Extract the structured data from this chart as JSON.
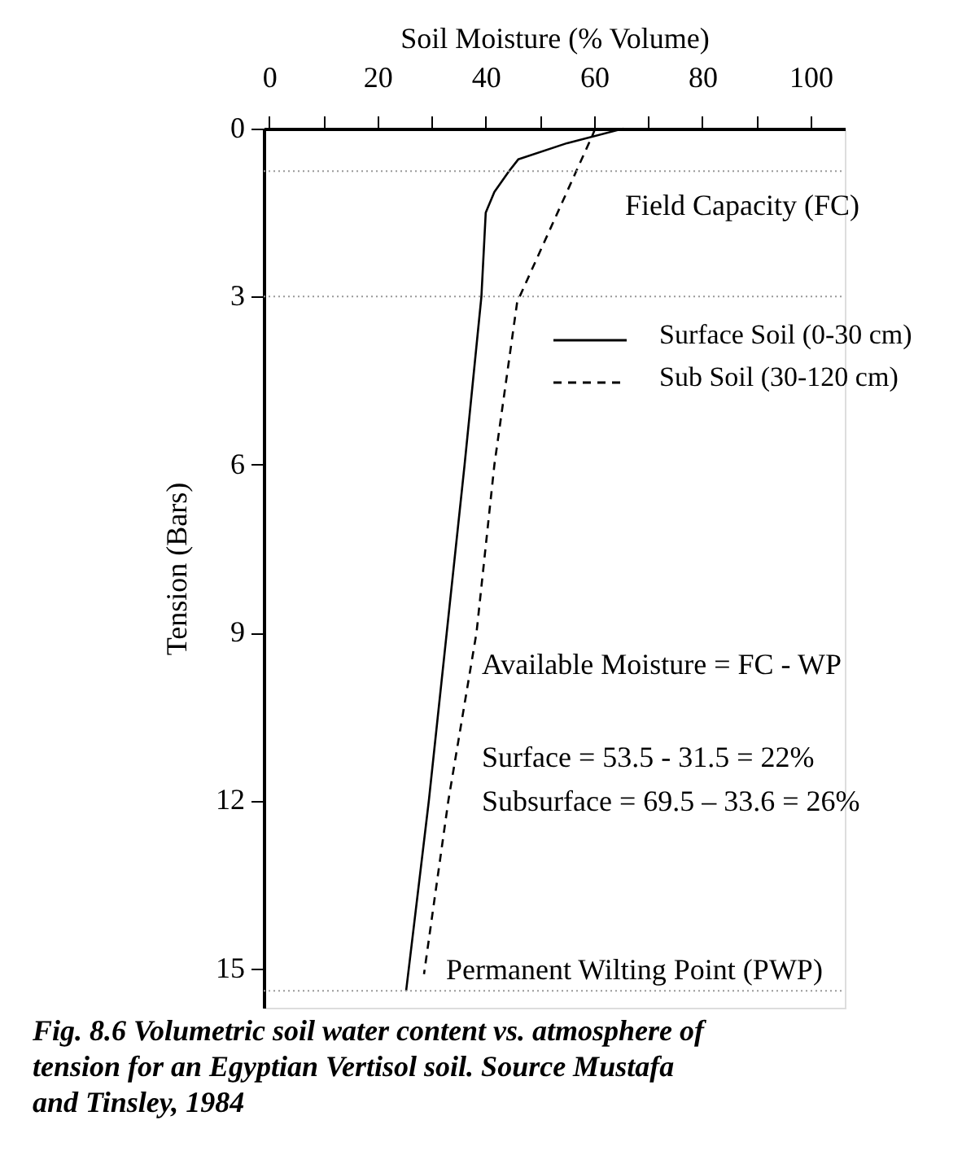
{
  "chart_data": {
    "type": "line",
    "xlabel": "Soil Moisture (% Volume)",
    "ylabel": "Tension (Bars)",
    "xlim": [
      -1,
      106.3
    ],
    "xticks": [
      0,
      {
        "value": 10,
        "label": null
      },
      20,
      {
        "value": 30,
        "label": null
      },
      40,
      {
        "value": 50,
        "label": null
      },
      60,
      {
        "value": 70,
        "label": null
      },
      80,
      {
        "value": 90,
        "label": null
      },
      100
    ],
    "ylim": [
      15.7,
      0
    ],
    "yticks": [
      0,
      3,
      6,
      9,
      12,
      15
    ],
    "series": [
      {
        "name": "Surface Soil (0-30 cm)",
        "color": "#000000",
        "line_style": "solid",
        "x": [
          65.4,
          55,
          46,
          44.3,
          41.6,
          40,
          39.2,
          36.1,
          32.8,
          29.5,
          25.3
        ],
        "values": [
          0,
          0.26,
          0.55,
          0.76,
          1.13,
          1.5,
          3,
          6,
          9,
          12,
          15.4
        ]
      },
      {
        "name": "Sub Soil (30-120 cm)",
        "color": "#000000",
        "line_style": "dashed",
        "x": [
          60.2,
          59.8,
          45.8,
          41.6,
          38.3,
          33.1,
          28.6
        ],
        "values": [
          0,
          0.1,
          3.1,
          6,
          9,
          12,
          15.1
        ]
      }
    ],
    "ref_lines": [
      {
        "axis": "y",
        "value": 0.76,
        "label": "Field Capacity (FC)",
        "color": "#999999",
        "line_style": "dotted"
      },
      {
        "axis": "y",
        "value": 3,
        "label": null,
        "color": "#999999",
        "line_style": "dotted"
      },
      {
        "axis": "y",
        "value": 15.4,
        "label": "Permanent Wilting Point (PWP)",
        "color": "#999999",
        "line_style": "dotted"
      }
    ],
    "annotations": [
      "Available Moisture = FC - WP",
      "Surface = 53.5 - 31.5 = 22%",
      "Subsurface = 69.5 – 33.6 = 26%",
      "Fig. 8.6 Volumetric soil water content vs. atmosphere of tension for an Egyptian Vertisol soil. Source Mustafa and Tinsley, 1984"
    ],
    "legend": "right",
    "grid": false,
    "marker": "none"
  }
}
